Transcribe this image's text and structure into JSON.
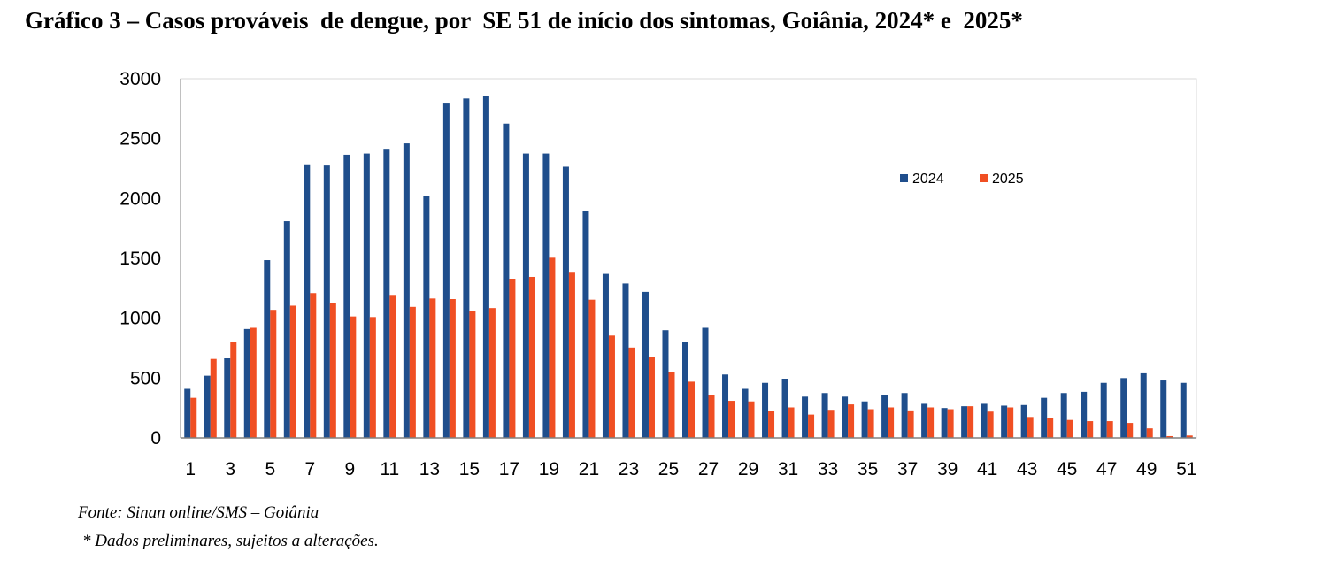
{
  "title": "Gráfico 3 – Casos prováveis  de dengue, por  SE 51 de início dos sintomas, Goiânia, 2024* e  2025*",
  "source": "Fonte: Sinan online/SMS – Goiânia",
  "note": "* Dados preliminares, sujeitos a alterações.",
  "colors": {
    "2024": "#1f4e8c",
    "2025": "#f04f23"
  },
  "chart_data": {
    "type": "bar",
    "title": "Gráfico 3 – Casos prováveis  de dengue, por  SE 51 de início dos sintomas, Goiânia, 2024* e  2025*",
    "xlabel": "",
    "ylabel": "",
    "ylim": [
      0,
      3000
    ],
    "yticks": [
      0,
      500,
      1000,
      1500,
      2000,
      2500,
      3000
    ],
    "xtick_labels": [
      "1",
      "3",
      "5",
      "7",
      "9",
      "11",
      "13",
      "15",
      "17",
      "19",
      "21",
      "23",
      "25",
      "27",
      "29",
      "31",
      "33",
      "35",
      "37",
      "39",
      "41",
      "43",
      "45",
      "47",
      "49",
      "51"
    ],
    "legend_position": "top-right",
    "categories": [
      "1",
      "2",
      "3",
      "4",
      "5",
      "6",
      "7",
      "8",
      "9",
      "10",
      "11",
      "12",
      "13",
      "14",
      "15",
      "16",
      "17",
      "18",
      "19",
      "20",
      "21",
      "22",
      "23",
      "24",
      "25",
      "26",
      "27",
      "28",
      "29",
      "30",
      "31",
      "32",
      "33",
      "34",
      "35",
      "36",
      "37",
      "38",
      "39",
      "40",
      "41",
      "42",
      "43",
      "44",
      "45",
      "46",
      "47",
      "48",
      "49",
      "50",
      "51"
    ],
    "series": [
      {
        "name": "2024",
        "color": "#1f4e8c",
        "values": [
          410,
          520,
          665,
          910,
          1485,
          1810,
          2285,
          2275,
          2365,
          2375,
          2415,
          2460,
          2020,
          2800,
          2835,
          2855,
          2625,
          2375,
          2375,
          2265,
          1895,
          1370,
          1290,
          1220,
          900,
          800,
          920,
          530,
          410,
          460,
          495,
          345,
          375,
          345,
          305,
          355,
          375,
          285,
          250,
          265,
          285,
          270,
          275,
          335,
          375,
          385,
          460,
          500,
          540,
          480,
          460
        ]
      },
      {
        "name": "2025",
        "color": "#f04f23",
        "values": [
          335,
          660,
          805,
          920,
          1070,
          1105,
          1210,
          1125,
          1015,
          1010,
          1195,
          1095,
          1165,
          1160,
          1060,
          1085,
          1330,
          1345,
          1505,
          1380,
          1155,
          855,
          755,
          675,
          550,
          470,
          355,
          310,
          305,
          225,
          255,
          195,
          235,
          280,
          240,
          255,
          230,
          255,
          240,
          265,
          220,
          255,
          175,
          165,
          150,
          140,
          140,
          125,
          80,
          15,
          20
        ]
      }
    ]
  }
}
